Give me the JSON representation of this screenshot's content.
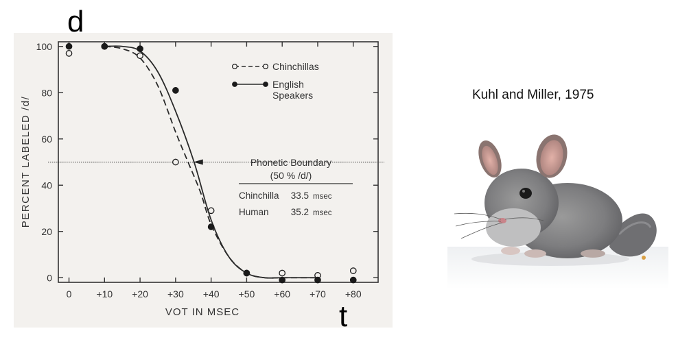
{
  "slide": {
    "corner_label_top": "d",
    "corner_label_bottom": "t",
    "citation": "Kuhl and Miller, 1975"
  },
  "chart_data": {
    "type": "line",
    "xlabel": "VOT IN MSEC",
    "ylabel": "PERCENT LABELED /d/",
    "x_ticks": [
      "0",
      "+10",
      "+20",
      "+30",
      "+40",
      "+50",
      "+60",
      "+70",
      "+80"
    ],
    "x_tick_values": [
      0,
      10,
      20,
      30,
      40,
      50,
      60,
      70,
      80
    ],
    "y_ticks": [
      "0",
      "20",
      "40",
      "60",
      "80",
      "100"
    ],
    "y_tick_values": [
      0,
      20,
      40,
      60,
      80,
      100
    ],
    "xlim": [
      -3,
      87
    ],
    "ylim": [
      -2,
      102
    ],
    "grid": false,
    "legend_position": "top-right",
    "series": [
      {
        "name": "Chinchillas",
        "marker": "open-circle",
        "line": "dashed",
        "points": [
          {
            "x": 0,
            "y": 97
          },
          {
            "x": 10,
            "y": 100
          },
          {
            "x": 20,
            "y": 96
          },
          {
            "x": 30,
            "y": 50
          },
          {
            "x": 40,
            "y": 29
          },
          {
            "x": 50,
            "y": 2
          },
          {
            "x": 60,
            "y": 2
          },
          {
            "x": 70,
            "y": 1
          },
          {
            "x": 80,
            "y": 3
          }
        ],
        "curve": [
          {
            "x": 10,
            "y": 100
          },
          {
            "x": 15,
            "y": 99
          },
          {
            "x": 20,
            "y": 95
          },
          {
            "x": 25,
            "y": 83
          },
          {
            "x": 30,
            "y": 63
          },
          {
            "x": 33.5,
            "y": 50
          },
          {
            "x": 37,
            "y": 37
          },
          {
            "x": 40,
            "y": 23
          },
          {
            "x": 45,
            "y": 9
          },
          {
            "x": 50,
            "y": 2
          },
          {
            "x": 55,
            "y": 0
          },
          {
            "x": 60,
            "y": 0
          },
          {
            "x": 70,
            "y": 0
          }
        ]
      },
      {
        "name": "English Speakers",
        "marker": "filled-circle",
        "line": "solid",
        "points": [
          {
            "x": 0,
            "y": 100
          },
          {
            "x": 10,
            "y": 100
          },
          {
            "x": 20,
            "y": 99
          },
          {
            "x": 30,
            "y": 81
          },
          {
            "x": 40,
            "y": 22
          },
          {
            "x": 50,
            "y": 2
          },
          {
            "x": 60,
            "y": -1
          },
          {
            "x": 70,
            "y": -1
          },
          {
            "x": 80,
            "y": -1
          }
        ],
        "curve": [
          {
            "x": 10,
            "y": 100
          },
          {
            "x": 15,
            "y": 100
          },
          {
            "x": 20,
            "y": 98
          },
          {
            "x": 25,
            "y": 89
          },
          {
            "x": 30,
            "y": 72
          },
          {
            "x": 35.2,
            "y": 50
          },
          {
            "x": 40,
            "y": 25
          },
          {
            "x": 45,
            "y": 9
          },
          {
            "x": 50,
            "y": 2
          },
          {
            "x": 55,
            "y": 0
          },
          {
            "x": 60,
            "y": 0
          },
          {
            "x": 70,
            "y": 0
          }
        ]
      }
    ],
    "boundary_line_y": 50,
    "boundary_marker_x": 35,
    "annotation": {
      "title_line1": "Phonetic Boundary",
      "title_line2": "(50 % /d/)",
      "rows": [
        {
          "label": "Chinchilla",
          "value": "33.5",
          "unit": "msec"
        },
        {
          "label": "Human",
          "value": "35.2",
          "unit": "msec"
        }
      ]
    }
  }
}
